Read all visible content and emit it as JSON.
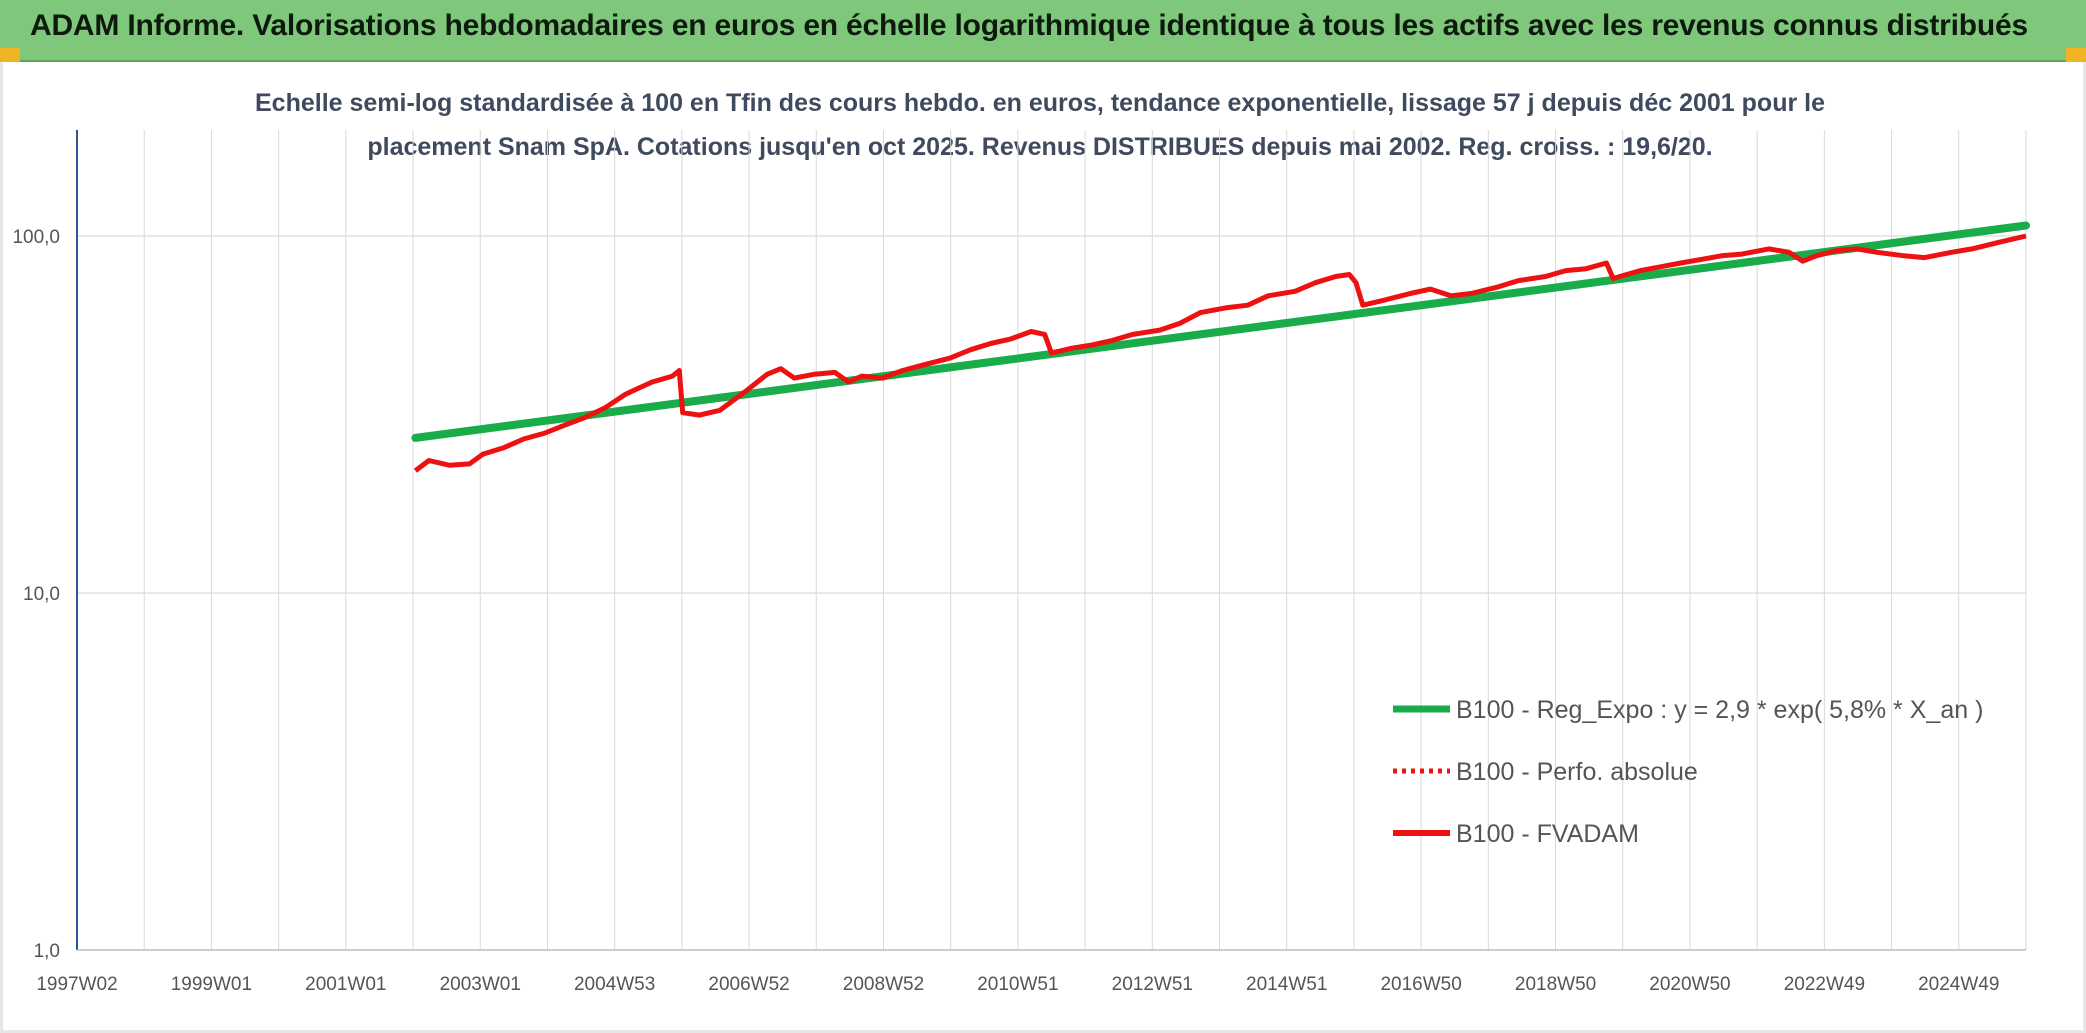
{
  "header": {
    "title": "ADAM Informe. Valorisations hebdomadaires en euros en échelle logarithmique identique à tous les actifs avec les revenus connus distribués"
  },
  "colors": {
    "header_bg": "#7ec77b",
    "trend": "#1aab4b",
    "series": "#ee1111",
    "axis": "#2f5597",
    "grid": "#d9d9d9"
  },
  "chart_data": {
    "type": "line",
    "title_line1": "Echelle semi-log standardisée à 100 en Tfin des cours hebdo. en euros, tendance exponentielle, lissage 57 j depuis déc 2001 pour le",
    "title_line2": "placement Snam SpA. Cotations jusqu'en oct 2025. Revenus DISTRIBUES depuis mai 2002. Reg. croiss. : 19,6/20.",
    "y_scale": "log",
    "ylim": [
      1,
      200
    ],
    "y_ticks": [
      "1,0",
      "10,0",
      "100,0"
    ],
    "x_ticks": [
      "1997W02",
      "1999W01",
      "2001W01",
      "2003W01",
      "2004W53",
      "2006W52",
      "2008W52",
      "2010W51",
      "2012W51",
      "2014W51",
      "2016W50",
      "2018W50",
      "2020W50",
      "2022W49",
      "2024W49"
    ],
    "x_range_years": [
      1997.0,
      2025.8
    ],
    "grid": true,
    "legend_position": "bottom-right",
    "series": [
      {
        "name": "B100 - Reg_Expo : y = 2,9 * exp( 5,8% *  X_an )",
        "style": "solid-green",
        "x": [
          2002.0,
          2025.8
        ],
        "y": [
          27.2,
          107.0
        ]
      },
      {
        "name": "B100 - Perfo. absolue",
        "style": "dotted-red",
        "x": [],
        "y": []
      },
      {
        "name": "B100 - FVADAM",
        "style": "solid-red",
        "x": [
          2002.0,
          2002.2,
          2002.5,
          2002.8,
          2003.0,
          2003.3,
          2003.6,
          2003.9,
          2004.2,
          2004.5,
          2004.8,
          2005.1,
          2005.3,
          2005.5,
          2005.8,
          2005.9,
          2005.95,
          2006.2,
          2006.5,
          2006.9,
          2007.2,
          2007.4,
          2007.6,
          2007.9,
          2008.2,
          2008.4,
          2008.6,
          2008.9,
          2009.2,
          2009.5,
          2009.9,
          2010.2,
          2010.5,
          2010.8,
          2011.1,
          2011.3,
          2011.4,
          2011.7,
          2012.0,
          2012.3,
          2012.6,
          2013.0,
          2013.3,
          2013.6,
          2014.0,
          2014.3,
          2014.6,
          2015.0,
          2015.3,
          2015.6,
          2015.8,
          2015.9,
          2016.0,
          2016.3,
          2016.7,
          2017.0,
          2017.3,
          2017.6,
          2018.0,
          2018.3,
          2018.7,
          2019.0,
          2019.3,
          2019.6,
          2019.7,
          2019.9,
          2020.1,
          2020.4,
          2020.7,
          2021.0,
          2021.3,
          2021.6,
          2022.0,
          2022.3,
          2022.5,
          2022.7,
          2023.0,
          2023.3,
          2023.6,
          2024.0,
          2024.3,
          2024.7,
          2025.0,
          2025.4,
          2025.8
        ],
        "y": [
          22.0,
          23.5,
          22.8,
          23.0,
          24.5,
          25.5,
          27.0,
          28.0,
          29.5,
          31.0,
          33.0,
          36.0,
          37.5,
          39.0,
          40.5,
          42.0,
          32.0,
          31.5,
          32.5,
          37.0,
          41.0,
          42.5,
          40.0,
          41.0,
          41.5,
          39.0,
          40.5,
          40.0,
          42.0,
          43.5,
          45.5,
          48.0,
          50.0,
          51.5,
          54.0,
          53.0,
          47.0,
          48.5,
          49.5,
          51.0,
          53.0,
          54.5,
          57.0,
          61.0,
          63.0,
          64.0,
          68.0,
          70.0,
          74.0,
          77.0,
          78.0,
          74.0,
          64.0,
          66.0,
          69.0,
          71.0,
          68.0,
          69.0,
          72.0,
          75.0,
          77.0,
          80.0,
          81.0,
          84.0,
          76.0,
          78.0,
          80.0,
          82.0,
          84.0,
          86.0,
          88.0,
          89.0,
          92.0,
          90.0,
          85.0,
          88.0,
          91.0,
          92.0,
          90.0,
          88.0,
          87.0,
          90.0,
          92.0,
          96.0,
          100.0
        ]
      }
    ]
  }
}
